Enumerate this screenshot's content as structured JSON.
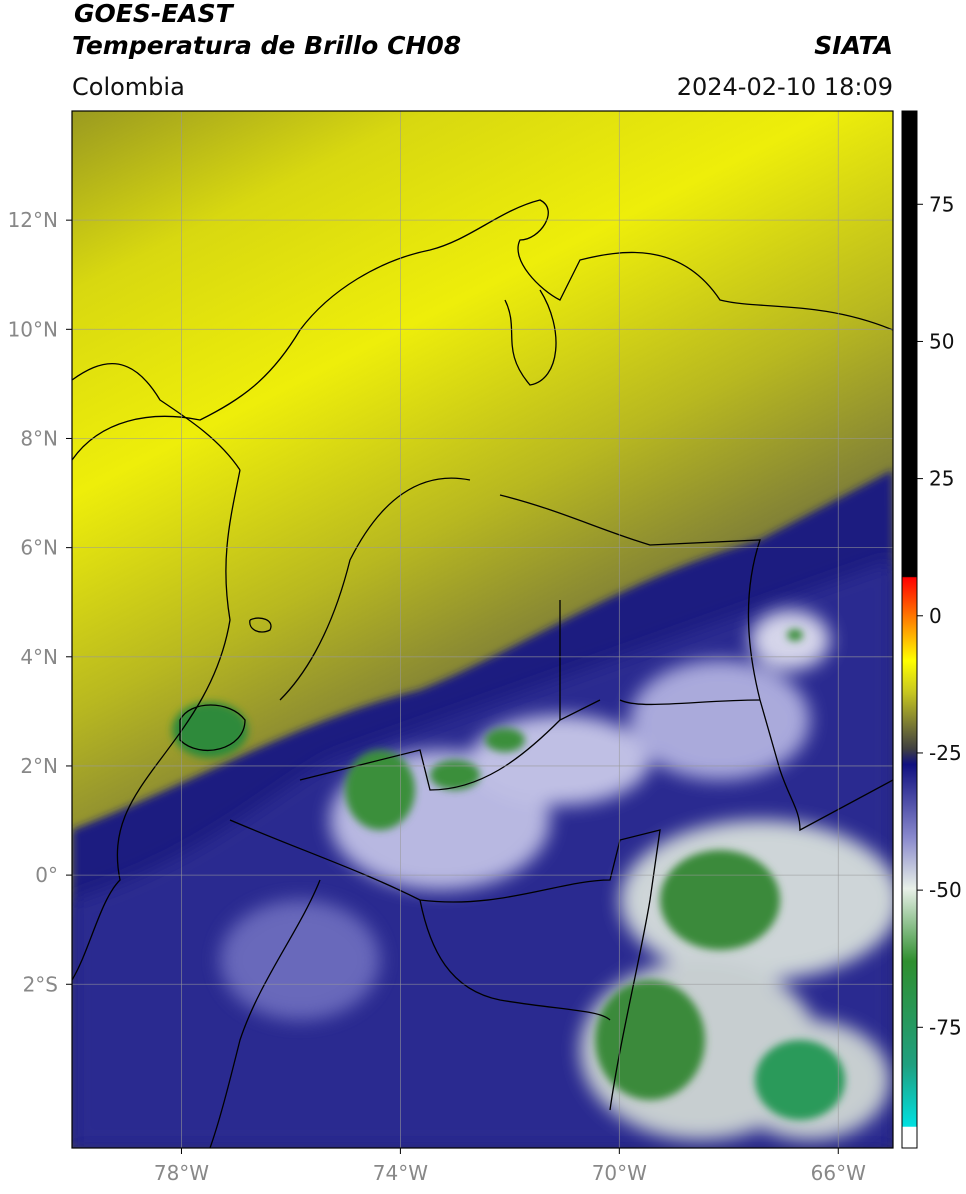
{
  "header": {
    "title": "GOES-EAST",
    "subtitle": "Temperatura de Brillo CH08",
    "source": "SIATA",
    "region": "Colombia",
    "datetime": "2024-02-10 18:09"
  },
  "map": {
    "lonlim": [
      -80,
      -65
    ],
    "latlim": [
      -5,
      14
    ],
    "grid": true,
    "lonticks": [
      {
        "value": -78,
        "label": "78°W"
      },
      {
        "value": -74,
        "label": "74°W"
      },
      {
        "value": -70,
        "label": "70°W"
      },
      {
        "value": -66,
        "label": "66°W"
      }
    ],
    "latticks": [
      {
        "value": 12,
        "label": "12°N"
      },
      {
        "value": 10,
        "label": "10°N"
      },
      {
        "value": 8,
        "label": "8°N"
      },
      {
        "value": 6,
        "label": "6°N"
      },
      {
        "value": 4,
        "label": "4°N"
      },
      {
        "value": 2,
        "label": "2°N"
      },
      {
        "value": 0,
        "label": "0°"
      },
      {
        "value": -2,
        "label": "2°S"
      }
    ]
  },
  "colorbar": {
    "lim": [
      -97,
      92
    ],
    "ticks": [
      -75,
      -50,
      -25,
      0,
      25,
      50,
      75
    ]
  }
}
